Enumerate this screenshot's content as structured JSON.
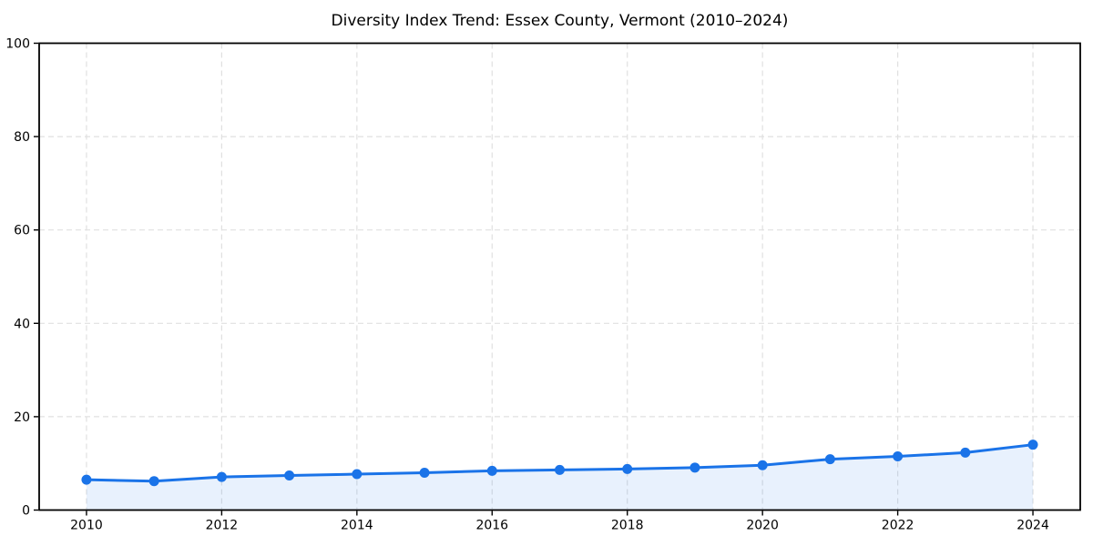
{
  "chart_data": {
    "type": "line",
    "title": "Diversity Index Trend: Essex County, Vermont (2010–2024)",
    "x": [
      2010,
      2011,
      2012,
      2013,
      2014,
      2015,
      2016,
      2017,
      2018,
      2019,
      2020,
      2021,
      2022,
      2023,
      2024
    ],
    "values": [
      6.5,
      6.2,
      7.1,
      7.4,
      7.7,
      8.0,
      8.4,
      8.6,
      8.8,
      9.1,
      9.6,
      10.9,
      11.5,
      12.3,
      14.0
    ],
    "xlabel": "",
    "ylabel": "",
    "xlim": [
      2009.3,
      2024.7
    ],
    "ylim": [
      0,
      100
    ],
    "xticks": [
      2010,
      2012,
      2014,
      2016,
      2018,
      2020,
      2022,
      2024
    ],
    "yticks": [
      0,
      20,
      40,
      60,
      80,
      100
    ],
    "grid": true,
    "grid_style": "dashed",
    "legend": "none",
    "marker": "circle",
    "line_color": "#1a73e8",
    "fill_color": "rgba(26,115,232,0.10)",
    "grid_color": "#e0e0e0",
    "axis_color": "#000000",
    "background": "#ffffff"
  }
}
